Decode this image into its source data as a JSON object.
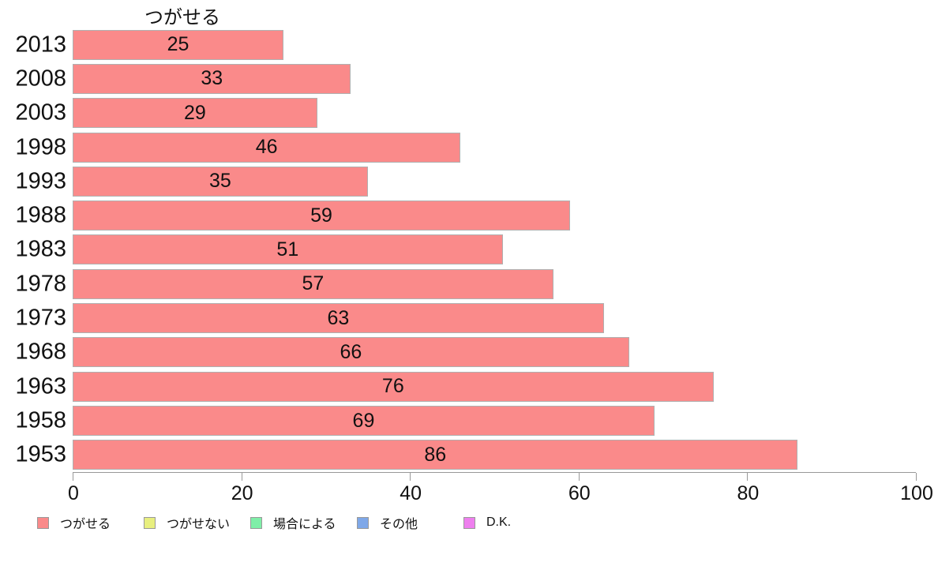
{
  "title": "つがせる",
  "colors": {
    "bar_fill": "#FA8A8A",
    "bar_border": "#B0B0B0",
    "axis": "#999999",
    "text": "#111111"
  },
  "chart_data": {
    "type": "bar",
    "orientation": "horizontal",
    "title": "つがせる",
    "series_name": "つがせる",
    "categories": [
      "2013",
      "2008",
      "2003",
      "1998",
      "1993",
      "1988",
      "1983",
      "1978",
      "1973",
      "1968",
      "1963",
      "1958",
      "1953"
    ],
    "values": [
      25,
      33,
      29,
      46,
      35,
      59,
      51,
      57,
      63,
      66,
      76,
      69,
      86
    ],
    "xlabel": "",
    "ylabel": "",
    "xlim": [
      0,
      100
    ],
    "x_ticks": [
      0,
      20,
      40,
      60,
      80,
      100
    ],
    "grid": false,
    "legend_position": "bottom",
    "bar_value_labels_shown": true
  },
  "legend": {
    "items": [
      {
        "label": "つがせる",
        "color": "#FA8A8A"
      },
      {
        "label": "つがせない",
        "color": "#E8EF7F"
      },
      {
        "label": "場合による",
        "color": "#7FEFA8"
      },
      {
        "label": "その他",
        "color": "#7FA8E8"
      },
      {
        "label": "D.K.",
        "color": "#EE7FEE"
      }
    ]
  }
}
